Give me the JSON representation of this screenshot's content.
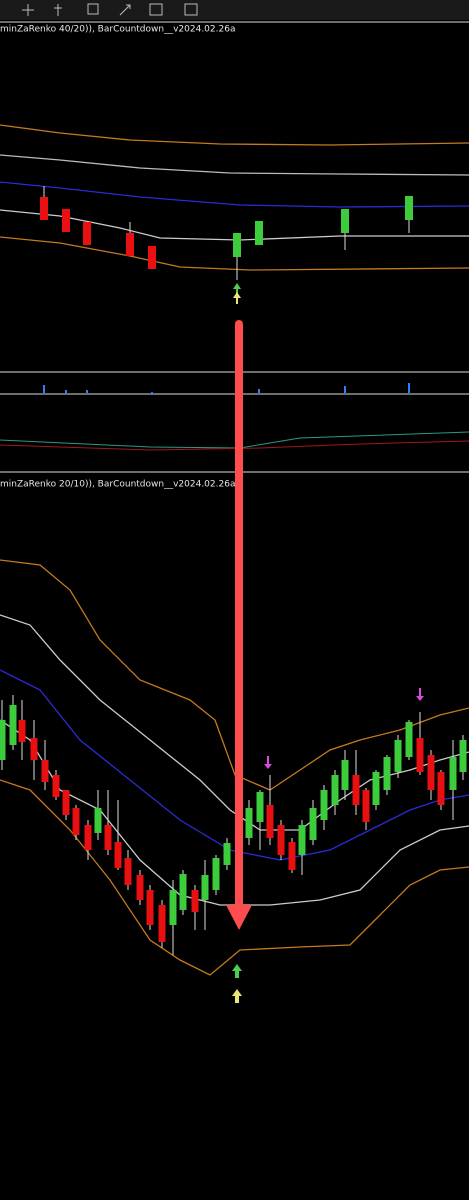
{
  "upper_panel": {
    "header": "minZaRenko 40/20)), BarCountdown__v2024.02.26a"
  },
  "lower_panel": {
    "header": "minZaRenko 20/10)), BarCountdown__v2024.02.26a"
  }
}
